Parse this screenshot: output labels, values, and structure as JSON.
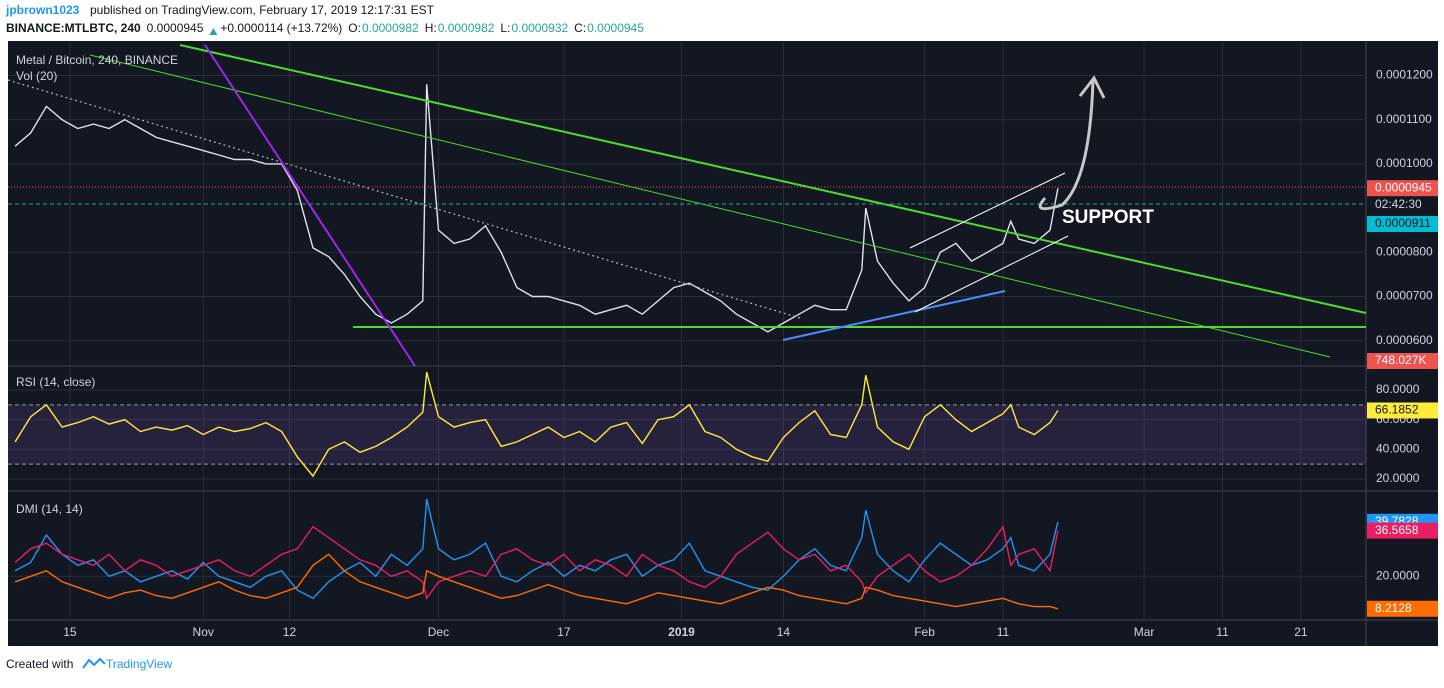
{
  "header": {
    "author": "jpbrown1023",
    "published": "published on TradingView.com, February 17, 2019 12:17:31 EST",
    "symbol": "BINANCE:MTLBTC, 240",
    "change": "+0.0000114 (+13.72%)",
    "open_label": "O:",
    "open": "0.0000982",
    "high_label": "H:",
    "high": "0.0000982",
    "low_label": "L:",
    "low": "0.0000932",
    "close_label": "C:"
  },
  "x_axis": {
    "xlim": [
      -7.9,
      165.3
    ],
    "xticks": [
      {
        "value": 0,
        "label": "15"
      },
      {
        "value": 17,
        "label": "Nov"
      },
      {
        "value": 28,
        "label": "12"
      },
      {
        "value": 47,
        "label": "Dec"
      },
      {
        "value": 63,
        "label": "17"
      },
      {
        "value": 78,
        "label": "2019"
      },
      {
        "value": 91,
        "label": "14"
      },
      {
        "value": 109,
        "label": "Feb"
      },
      {
        "value": 119,
        "label": "11"
      },
      {
        "value": 137,
        "label": "Mar"
      },
      {
        "value": 147,
        "label": "11"
      },
      {
        "value": 157,
        "label": "21"
      }
    ]
  },
  "price": {
    "title": "Metal / Bitcoin, 240, BINANCE",
    "volume_title": "Vol (20)",
    "color": "#e0e3eb",
    "ylim": [
      5.45e-05,
      0.0001278
    ],
    "yticks": [
      {
        "value": 0.00012,
        "label": "0.0001200"
      },
      {
        "value": 0.00011,
        "label": "0.0001100"
      },
      {
        "value": 0.0001,
        "label": "0.0001000"
      },
      {
        "value": 8e-05,
        "label": "0.0000800"
      },
      {
        "value": 7e-05,
        "label": "0.0000700"
      },
      {
        "value": 6e-05,
        "label": "0.0000600"
      }
    ],
    "x": [
      -7,
      -5,
      -3,
      -1,
      1,
      3,
      5,
      7,
      9,
      11,
      13,
      15,
      17,
      19,
      21,
      23,
      25,
      27,
      29,
      31,
      33,
      35,
      37,
      39,
      41,
      43,
      45,
      45.5,
      47,
      49,
      51,
      53,
      55,
      57,
      59,
      61,
      63,
      65,
      67,
      69,
      71,
      73,
      75,
      77,
      79,
      81,
      83,
      85,
      87,
      89,
      91,
      93,
      95,
      97,
      99,
      101,
      101.5,
      103,
      105,
      107,
      109,
      111,
      113,
      115,
      117,
      119,
      120,
      121,
      123,
      125,
      126
    ],
    "values": [
      0.000104,
      0.000107,
      0.000113,
      0.00011,
      0.000108,
      0.000109,
      0.000108,
      0.00011,
      0.000108,
      0.000106,
      0.000105,
      0.000104,
      0.000103,
      0.000102,
      0.000101,
      0.000101,
      0.0001,
      0.0001,
      9.4e-05,
      8.1e-05,
      7.9e-05,
      7.5e-05,
      7e-05,
      6.6e-05,
      6.4e-05,
      6.6e-05,
      6.9e-05,
      0.000118,
      8.5e-05,
      8.2e-05,
      8.3e-05,
      8.6e-05,
      8e-05,
      7.2e-05,
      7e-05,
      7e-05,
      6.9e-05,
      6.8e-05,
      6.6e-05,
      6.7e-05,
      6.8e-05,
      6.6e-05,
      6.9e-05,
      7.2e-05,
      7.3e-05,
      7.1e-05,
      6.9e-05,
      6.6e-05,
      6.4e-05,
      6.2e-05,
      6.4e-05,
      6.6e-05,
      6.8e-05,
      6.7e-05,
      6.7e-05,
      7.6e-05,
      9e-05,
      7.8e-05,
      7.3e-05,
      6.9e-05,
      7.2e-05,
      8e-05,
      8.2e-05,
      7.8e-05,
      8e-05,
      8.2e-05,
      8.7e-05,
      8.3e-05,
      8.2e-05,
      8.5e-05,
      9.45e-05
    ],
    "countdown": "02:42:30",
    "bid_label": "0.0000911",
    "volume_label": "748.027K",
    "annotation": "SUPPORT"
  },
  "rsi": {
    "title": "RSI (14, close)",
    "color": "#ffeb3b",
    "ylim": [
      12.6,
      95.5
    ],
    "band": [
      30,
      70
    ],
    "yticks": [
      {
        "value": 80,
        "label": "80.0000"
      },
      {
        "value": 60,
        "label": "60.0000"
      },
      {
        "value": 40,
        "label": "40.0000"
      },
      {
        "value": 20,
        "label": "20.0000"
      }
    ],
    "values": [
      45,
      62,
      70,
      55,
      58,
      62,
      57,
      60,
      52,
      55,
      53,
      56,
      50,
      55,
      52,
      54,
      58,
      52,
      35,
      22,
      40,
      45,
      38,
      42,
      48,
      55,
      65,
      92,
      62,
      55,
      58,
      60,
      42,
      45,
      50,
      55,
      48,
      52,
      45,
      55,
      58,
      44,
      60,
      62,
      70,
      52,
      48,
      40,
      35,
      32,
      48,
      58,
      66,
      50,
      48,
      70,
      90,
      55,
      45,
      40,
      62,
      70,
      60,
      52,
      58,
      64,
      70,
      55,
      50,
      58,
      66.1852
    ]
  },
  "dmi": {
    "title": "DMI (14, 14)",
    "ylim": [
      4.5,
      50.6
    ],
    "yticks": [
      {
        "value": 20,
        "label": "20.0000"
      }
    ],
    "series": [
      {
        "color": "#2196f3",
        "values": [
          22,
          25,
          35,
          28,
          24,
          26,
          20,
          22,
          18,
          20,
          22,
          19,
          25,
          20,
          18,
          16,
          20,
          22,
          15,
          12,
          18,
          22,
          25,
          20,
          28,
          24,
          30,
          48,
          30,
          26,
          28,
          32,
          20,
          18,
          22,
          25,
          20,
          24,
          22,
          26,
          28,
          20,
          24,
          26,
          32,
          22,
          20,
          18,
          16,
          15,
          20,
          26,
          30,
          24,
          22,
          34,
          44,
          28,
          22,
          18,
          26,
          32,
          28,
          24,
          26,
          30,
          34,
          24,
          22,
          28,
          39.7828
        ]
      },
      {
        "color": "#e91e63",
        "values": [
          25,
          30,
          32,
          28,
          26,
          24,
          28,
          22,
          26,
          24,
          20,
          22,
          24,
          26,
          22,
          20,
          24,
          28,
          30,
          38,
          34,
          30,
          26,
          24,
          20,
          22,
          18,
          12,
          18,
          20,
          22,
          20,
          28,
          30,
          26,
          24,
          28,
          22,
          26,
          24,
          20,
          28,
          24,
          22,
          18,
          16,
          20,
          28,
          32,
          36,
          30,
          26,
          28,
          22,
          24,
          18,
          14,
          20,
          24,
          28,
          22,
          18,
          20,
          24,
          30,
          38,
          24,
          28,
          30,
          22,
          36.5658
        ]
      },
      {
        "color": "#ff6d00",
        "values": [
          18,
          20,
          22,
          18,
          16,
          14,
          12,
          14,
          15,
          13,
          12,
          14,
          16,
          18,
          15,
          13,
          12,
          14,
          16,
          24,
          28,
          22,
          18,
          16,
          14,
          12,
          14,
          22,
          20,
          18,
          16,
          14,
          12,
          13,
          15,
          17,
          15,
          13,
          12,
          11,
          10,
          12,
          14,
          13,
          12,
          11,
          10,
          12,
          14,
          16,
          15,
          13,
          12,
          11,
          10,
          12,
          16,
          15,
          13,
          12,
          11,
          10,
          9,
          10,
          11,
          12,
          11,
          10,
          9,
          9,
          8.2128
        ]
      }
    ]
  },
  "footer": {
    "created": "Created with",
    "brand": "TradingView"
  }
}
